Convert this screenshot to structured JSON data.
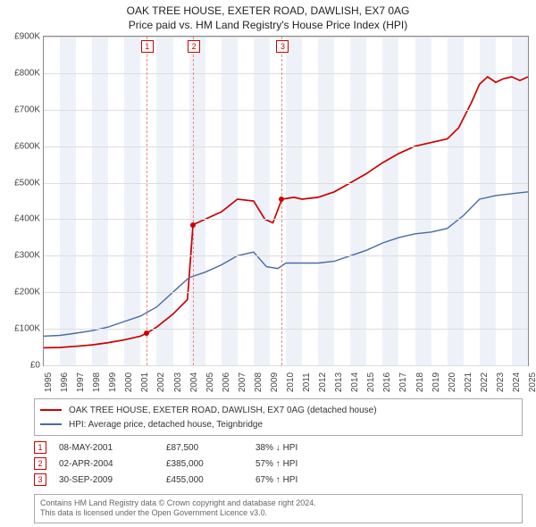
{
  "title": {
    "line1": "OAK TREE HOUSE, EXETER ROAD, DAWLISH, EX7 0AG",
    "line2": "Price paid vs. HM Land Registry's House Price Index (HPI)"
  },
  "chart": {
    "type": "line",
    "background_color": "#ffffff",
    "grid_color": "#dddddd",
    "ylim": [
      0,
      900000
    ],
    "ytick_step": 100000,
    "ytick_labels": [
      "£0",
      "£100K",
      "£200K",
      "£300K",
      "£400K",
      "£500K",
      "£600K",
      "£700K",
      "£800K",
      "£900K"
    ],
    "x_years": [
      1995,
      1996,
      1997,
      1998,
      1999,
      2000,
      2001,
      2002,
      2003,
      2004,
      2005,
      2006,
      2007,
      2008,
      2009,
      2010,
      2011,
      2012,
      2013,
      2014,
      2015,
      2016,
      2017,
      2018,
      2019,
      2020,
      2021,
      2022,
      2023,
      2024,
      2025
    ],
    "series": [
      {
        "label": "OAK TREE HOUSE, EXETER ROAD, DAWLISH, EX7 0AG (detached house)",
        "color": "#cc0000",
        "line_width": 1.7,
        "data": [
          [
            1995.0,
            48000
          ],
          [
            1996.0,
            49000
          ],
          [
            1997.0,
            52000
          ],
          [
            1998.0,
            56000
          ],
          [
            1999.0,
            62000
          ],
          [
            2000.0,
            70000
          ],
          [
            2001.0,
            80000
          ],
          [
            2001.35,
            87500
          ],
          [
            2002.0,
            105000
          ],
          [
            2003.0,
            140000
          ],
          [
            2003.9,
            180000
          ],
          [
            2004.25,
            385000
          ],
          [
            2005.0,
            400000
          ],
          [
            2006.0,
            420000
          ],
          [
            2007.0,
            455000
          ],
          [
            2008.0,
            450000
          ],
          [
            2008.7,
            400000
          ],
          [
            2009.2,
            390000
          ],
          [
            2009.75,
            455000
          ],
          [
            2010.5,
            460000
          ],
          [
            2011.0,
            455000
          ],
          [
            2012.0,
            460000
          ],
          [
            2013.0,
            475000
          ],
          [
            2014.0,
            500000
          ],
          [
            2015.0,
            525000
          ],
          [
            2016.0,
            555000
          ],
          [
            2017.0,
            580000
          ],
          [
            2018.0,
            600000
          ],
          [
            2019.0,
            610000
          ],
          [
            2020.0,
            620000
          ],
          [
            2020.7,
            650000
          ],
          [
            2021.5,
            720000
          ],
          [
            2022.0,
            770000
          ],
          [
            2022.5,
            790000
          ],
          [
            2023.0,
            775000
          ],
          [
            2023.5,
            785000
          ],
          [
            2024.0,
            790000
          ],
          [
            2024.5,
            780000
          ],
          [
            2025.0,
            790000
          ]
        ]
      },
      {
        "label": "HPI: Average price, detached house, Teignbridge",
        "color": "#4a6aa5",
        "line_width": 1.4,
        "data": [
          [
            1995.0,
            80000
          ],
          [
            1996.0,
            82000
          ],
          [
            1997.0,
            88000
          ],
          [
            1998.0,
            95000
          ],
          [
            1999.0,
            105000
          ],
          [
            2000.0,
            120000
          ],
          [
            2001.0,
            135000
          ],
          [
            2002.0,
            160000
          ],
          [
            2003.0,
            200000
          ],
          [
            2004.0,
            240000
          ],
          [
            2005.0,
            255000
          ],
          [
            2006.0,
            275000
          ],
          [
            2007.0,
            300000
          ],
          [
            2008.0,
            310000
          ],
          [
            2008.8,
            270000
          ],
          [
            2009.5,
            265000
          ],
          [
            2010.0,
            280000
          ],
          [
            2011.0,
            280000
          ],
          [
            2012.0,
            280000
          ],
          [
            2013.0,
            285000
          ],
          [
            2014.0,
            300000
          ],
          [
            2015.0,
            315000
          ],
          [
            2016.0,
            335000
          ],
          [
            2017.0,
            350000
          ],
          [
            2018.0,
            360000
          ],
          [
            2019.0,
            365000
          ],
          [
            2020.0,
            375000
          ],
          [
            2021.0,
            410000
          ],
          [
            2022.0,
            455000
          ],
          [
            2023.0,
            465000
          ],
          [
            2024.0,
            470000
          ],
          [
            2025.0,
            475000
          ]
        ]
      }
    ],
    "sale_markers": [
      {
        "n": "1",
        "year": 2001.35,
        "value": 87500
      },
      {
        "n": "2",
        "year": 2004.25,
        "value": 385000
      },
      {
        "n": "3",
        "year": 2009.75,
        "value": 455000
      }
    ],
    "altband_years": [
      1996,
      1998,
      2000,
      2002,
      2004,
      2006,
      2008,
      2010,
      2012,
      2014,
      2016,
      2018,
      2020,
      2022,
      2024
    ]
  },
  "legend": {
    "rows": [
      {
        "color": "#cc0000",
        "label": "OAK TREE HOUSE, EXETER ROAD, DAWLISH, EX7 0AG (detached house)"
      },
      {
        "color": "#4a6aa5",
        "label": "HPI: Average price, detached house, Teignbridge"
      }
    ]
  },
  "markers_table": {
    "rows": [
      {
        "n": "1",
        "date": "08-MAY-2001",
        "price": "£87,500",
        "delta": "38% ↓ HPI"
      },
      {
        "n": "2",
        "date": "02-APR-2004",
        "price": "£385,000",
        "delta": "57% ↑ HPI"
      },
      {
        "n": "3",
        "date": "30-SEP-2009",
        "price": "£455,000",
        "delta": "67% ↑ HPI"
      }
    ]
  },
  "footer": {
    "line1": "Contains HM Land Registry data © Crown copyright and database right 2024.",
    "line2": "This data is licensed under the Open Government Licence v3.0."
  }
}
